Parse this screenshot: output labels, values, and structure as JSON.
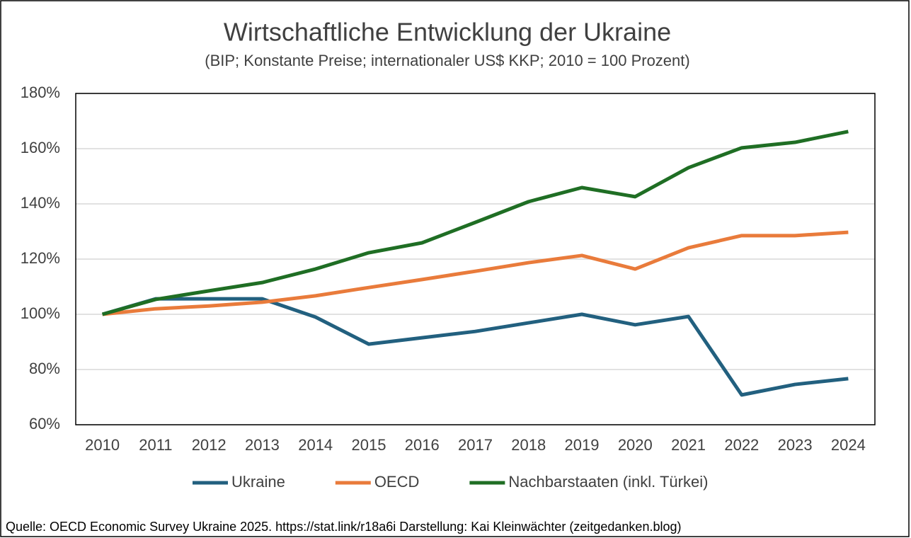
{
  "chart_data": {
    "type": "line",
    "title": "Wirtschaftliche Entwicklung der Ukraine",
    "subtitle": "(BIP; Konstante Preise; internationaler US$ KKP; 2010 = 100 Prozent)",
    "categories": [
      "2010",
      "2011",
      "2012",
      "2013",
      "2014",
      "2015",
      "2016",
      "2017",
      "2018",
      "2019",
      "2020",
      "2021",
      "2022",
      "2023",
      "2024"
    ],
    "series": [
      {
        "name": "Ukraine",
        "color": "#22607f",
        "values": [
          100,
          105.6,
          105.6,
          105.6,
          99,
          89.2,
          91.5,
          93.8,
          96.9,
          100,
          96.2,
          99.2,
          70.8,
          74.6,
          76.7
        ]
      },
      {
        "name": "OECD",
        "color": "#e97b3b",
        "values": [
          100,
          102,
          103,
          104.4,
          106.7,
          109.7,
          112.6,
          115.6,
          118.7,
          121.3,
          116.4,
          124.1,
          128.5,
          128.5,
          129.7
        ]
      },
      {
        "name": "Nachbarstaaten (inkl. Türkei)",
        "color": "#1f6e24",
        "values": [
          100,
          105.4,
          108.5,
          111.5,
          116.4,
          122.3,
          125.9,
          133.3,
          140.8,
          145.9,
          142.6,
          153.1,
          160.3,
          162.3,
          166.2
        ]
      }
    ],
    "ylim": [
      60,
      180
    ],
    "yticks": [
      {
        "value": 60,
        "label": "60%"
      },
      {
        "value": 80,
        "label": "80%"
      },
      {
        "value": 100,
        "label": "100%"
      },
      {
        "value": 120,
        "label": "120%"
      },
      {
        "value": 140,
        "label": "140%"
      },
      {
        "value": 160,
        "label": "160%"
      },
      {
        "value": 180,
        "label": "180%"
      }
    ],
    "grid": true,
    "legend": "bottom",
    "source": "Quelle: OECD Economic Survey Ukraine 2025. https://stat.link/r18a6i Darstellung: Kai Kleinwächter (zeitgedanken.blog)"
  }
}
